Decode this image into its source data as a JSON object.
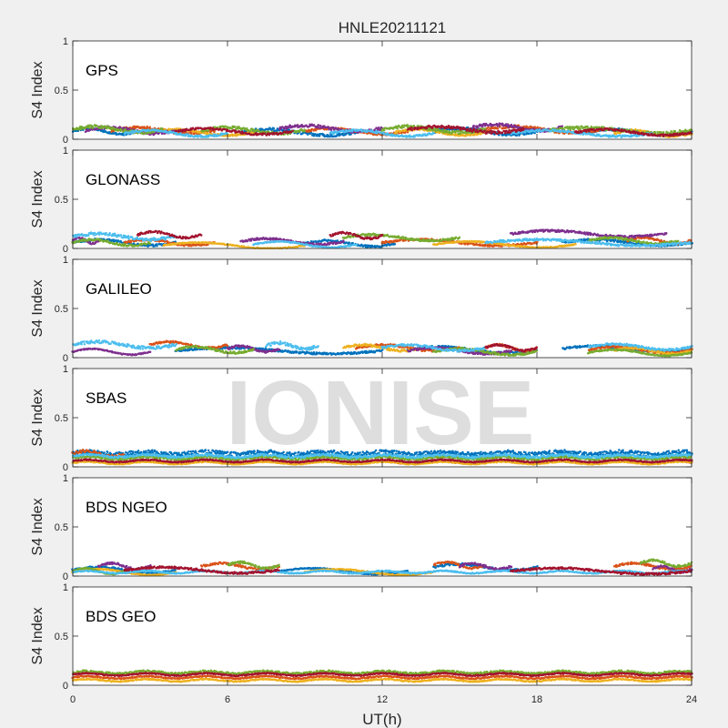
{
  "title": "HNLE20211121",
  "watermark": "IONISE",
  "colors": [
    "#0072BD",
    "#D95319",
    "#EDB120",
    "#7E2F8E",
    "#77AC30",
    "#4DBEEE",
    "#A2142F"
  ],
  "chart_data": {
    "type": "scatter",
    "title": "HNLE20211121",
    "xlabel": "UT(h)",
    "ylabel": "S4 Index",
    "xlim": [
      0,
      24
    ],
    "ylim": [
      0,
      1
    ],
    "xticks": [
      0,
      6,
      12,
      18,
      24
    ],
    "yticks": [
      0,
      0.5,
      1
    ],
    "grid": false,
    "panels": [
      {
        "label": "GPS",
        "series": [
          {
            "color": "#0072BD",
            "segments": [
              [
                0.0,
                2.5,
                0.08,
                0.02
              ],
              [
                6.5,
                11.0,
                0.07,
                0.03
              ],
              [
                14.0,
                18.0,
                0.08,
                0.03
              ],
              [
                20.0,
                24.0,
                0.07,
                0.02
              ]
            ]
          },
          {
            "color": "#D95319",
            "segments": [
              [
                1.5,
                5.5,
                0.09,
                0.03
              ],
              [
                9.0,
                13.0,
                0.08,
                0.02
              ],
              [
                16.0,
                20.5,
                0.1,
                0.03
              ]
            ]
          },
          {
            "color": "#EDB120",
            "segments": [
              [
                3.0,
                7.0,
                0.07,
                0.02
              ],
              [
                12.5,
                16.0,
                0.07,
                0.02
              ],
              [
                21.0,
                24.0,
                0.06,
                0.02
              ]
            ]
          },
          {
            "color": "#7E2F8E",
            "segments": [
              [
                0.5,
                4.0,
                0.09,
                0.03
              ],
              [
                8.0,
                12.0,
                0.11,
                0.03
              ],
              [
                15.5,
                19.0,
                0.12,
                0.03
              ]
            ]
          },
          {
            "color": "#77AC30",
            "segments": [
              [
                0.0,
                3.5,
                0.1,
                0.03
              ],
              [
                5.0,
                9.0,
                0.09,
                0.03
              ],
              [
                12.0,
                16.0,
                0.1,
                0.03
              ],
              [
                18.5,
                24.0,
                0.09,
                0.03
              ]
            ]
          },
          {
            "color": "#4DBEEE",
            "segments": [
              [
                2.0,
                6.0,
                0.06,
                0.02
              ],
              [
                10.0,
                14.0,
                0.06,
                0.02
              ],
              [
                17.0,
                22.5,
                0.06,
                0.02
              ]
            ]
          },
          {
            "color": "#A2142F",
            "segments": [
              [
                4.0,
                8.5,
                0.08,
                0.02
              ],
              [
                13.0,
                17.5,
                0.1,
                0.03
              ],
              [
                19.5,
                24.0,
                0.07,
                0.02
              ]
            ]
          }
        ]
      },
      {
        "label": "GLONASS",
        "series": [
          {
            "color": "#0072BD",
            "segments": [
              [
                0.0,
                4.0,
                0.06,
                0.02
              ],
              [
                9.0,
                12.5,
                0.05,
                0.02
              ],
              [
                19.0,
                24.0,
                0.06,
                0.02
              ]
            ]
          },
          {
            "color": "#D95319",
            "segments": [
              [
                2.0,
                5.5,
                0.06,
                0.02
              ],
              [
                12.0,
                18.0,
                0.06,
                0.02
              ],
              [
                21.5,
                24.0,
                0.08,
                0.02
              ]
            ]
          },
          {
            "color": "#EDB120",
            "segments": [
              [
                3.5,
                9.0,
                0.03,
                0.01
              ],
              [
                14.0,
                19.5,
                0.04,
                0.01
              ]
            ]
          },
          {
            "color": "#7E2F8E",
            "segments": [
              [
                0.0,
                1.0,
                0.08,
                0.02
              ],
              [
                6.5,
                10.5,
                0.07,
                0.02
              ],
              [
                17.0,
                23.0,
                0.15,
                0.02
              ]
            ]
          },
          {
            "color": "#77AC30",
            "segments": [
              [
                0.0,
                3.0,
                0.06,
                0.02
              ],
              [
                10.5,
                15.0,
                0.11,
                0.02
              ],
              [
                20.0,
                23.5,
                0.08,
                0.02
              ]
            ]
          },
          {
            "color": "#4DBEEE",
            "segments": [
              [
                0.0,
                4.0,
                0.12,
                0.03
              ],
              [
                7.0,
                11.0,
                0.04,
                0.01
              ],
              [
                16.0,
                24.0,
                0.06,
                0.02
              ]
            ]
          },
          {
            "color": "#A2142F",
            "segments": [
              [
                2.5,
                5.0,
                0.14,
                0.02
              ],
              [
                10.0,
                12.0,
                0.13,
                0.02
              ]
            ]
          }
        ]
      },
      {
        "label": "GALILEO",
        "series": [
          {
            "color": "#0072BD",
            "segments": [
              [
                4.0,
                12.0,
                0.07,
                0.02
              ],
              [
                13.0,
                18.0,
                0.08,
                0.02
              ],
              [
                19.0,
                24.0,
                0.09,
                0.02
              ]
            ]
          },
          {
            "color": "#D95319",
            "segments": [
              [
                3.0,
                6.0,
                0.13,
                0.02
              ],
              [
                11.0,
                15.0,
                0.1,
                0.02
              ],
              [
                16.0,
                18.0,
                0.1,
                0.02
              ],
              [
                20.0,
                24.0,
                0.08,
                0.02
              ]
            ]
          },
          {
            "color": "#EDB120",
            "segments": [
              [
                10.5,
                13.5,
                0.1,
                0.02
              ],
              [
                21.0,
                24.0,
                0.07,
                0.02
              ]
            ]
          },
          {
            "color": "#7E2F8E",
            "segments": [
              [
                0.0,
                3.0,
                0.06,
                0.01
              ],
              [
                6.0,
                8.0,
                0.09,
                0.02
              ],
              [
                13.0,
                17.0,
                0.07,
                0.02
              ]
            ]
          },
          {
            "color": "#77AC30",
            "segments": [
              [
                4.0,
                7.0,
                0.08,
                0.02
              ],
              [
                14.0,
                18.0,
                0.06,
                0.02
              ],
              [
                20.0,
                24.0,
                0.05,
                0.01
              ]
            ]
          },
          {
            "color": "#4DBEEE",
            "segments": [
              [
                0.0,
                4.0,
                0.13,
                0.03
              ],
              [
                7.5,
                9.5,
                0.12,
                0.03
              ],
              [
                12.0,
                16.0,
                0.1,
                0.02
              ],
              [
                20.0,
                24.0,
                0.11,
                0.02
              ]
            ]
          },
          {
            "color": "#A2142F",
            "segments": [
              [
                16.0,
                18.0,
                0.1,
                0.02
              ]
            ]
          }
        ]
      },
      {
        "label": "SBAS",
        "series": [
          {
            "color": "#0072BD",
            "segments": [
              [
                0.0,
                24.0,
                0.14,
                0.04
              ]
            ]
          },
          {
            "color": "#D95319",
            "segments": [
              [
                0.0,
                2.0,
                0.13,
                0.04
              ],
              [
                2.0,
                24.0,
                0.05,
                0.01
              ]
            ]
          },
          {
            "color": "#EDB120",
            "segments": [
              [
                0.0,
                24.0,
                0.04,
                0.01
              ]
            ]
          },
          {
            "color": "#77AC30",
            "segments": [
              [
                0.0,
                24.0,
                0.09,
                0.02
              ]
            ]
          },
          {
            "color": "#4DBEEE",
            "segments": [
              [
                0.0,
                24.0,
                0.11,
                0.02
              ]
            ]
          },
          {
            "color": "#A2142F",
            "segments": [
              [
                0.0,
                24.0,
                0.06,
                0.01
              ]
            ]
          }
        ]
      },
      {
        "label": "BDS NGEO",
        "series": [
          {
            "color": "#0072BD",
            "segments": [
              [
                0.0,
                4.0,
                0.06,
                0.02
              ],
              [
                8.0,
                13.0,
                0.05,
                0.01
              ],
              [
                14.0,
                18.0,
                0.09,
                0.02
              ]
            ]
          },
          {
            "color": "#D95319",
            "segments": [
              [
                5.0,
                8.0,
                0.1,
                0.02
              ],
              [
                14.0,
                16.0,
                0.11,
                0.02
              ],
              [
                21.0,
                24.0,
                0.1,
                0.02
              ]
            ]
          },
          {
            "color": "#EDB120",
            "segments": [
              [
                0.0,
                4.0,
                0.04,
                0.01
              ],
              [
                9.0,
                14.0,
                0.04,
                0.01
              ]
            ]
          },
          {
            "color": "#7E2F8E",
            "segments": [
              [
                1.0,
                3.0,
                0.1,
                0.02
              ],
              [
                15.0,
                17.0,
                0.1,
                0.02
              ],
              [
                22.5,
                24.0,
                0.07,
                0.02
              ]
            ]
          },
          {
            "color": "#77AC30",
            "segments": [
              [
                0.0,
                2.0,
                0.05,
                0.01
              ],
              [
                6.0,
                8.0,
                0.11,
                0.02
              ],
              [
                22.0,
                24.0,
                0.13,
                0.02
              ]
            ]
          },
          {
            "color": "#4DBEEE",
            "segments": [
              [
                0.0,
                24.0,
                0.04,
                0.01
              ]
            ]
          },
          {
            "color": "#A2142F",
            "segments": [
              [
                2.0,
                8.0,
                0.06,
                0.02
              ],
              [
                17.0,
                24.0,
                0.05,
                0.02
              ]
            ]
          }
        ]
      },
      {
        "label": "BDS GEO",
        "series": [
          {
            "color": "#77AC30",
            "segments": [
              [
                0.0,
                24.0,
                0.13,
                0.02
              ]
            ]
          },
          {
            "color": "#D95319",
            "segments": [
              [
                0.0,
                24.0,
                0.08,
                0.01
              ]
            ]
          },
          {
            "color": "#A2142F",
            "segments": [
              [
                0.0,
                24.0,
                0.11,
                0.01
              ]
            ]
          },
          {
            "color": "#EDB120",
            "segments": [
              [
                0.0,
                24.0,
                0.05,
                0.01
              ]
            ]
          }
        ]
      }
    ]
  }
}
